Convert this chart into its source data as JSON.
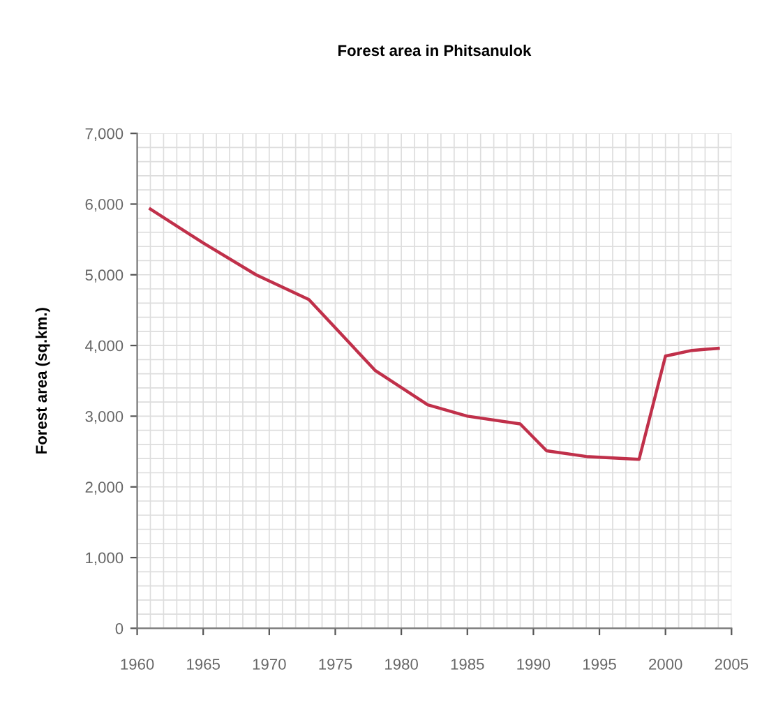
{
  "chart_data": {
    "type": "line",
    "title": "Forest area in Phitsanulok",
    "ylabel": "Forest area (sq.km.)",
    "x": [
      1961,
      1965,
      1969,
      1973,
      1978,
      1982,
      1985,
      1989,
      1991,
      1994,
      1998,
      2000,
      2002,
      2004
    ],
    "series": [
      {
        "color": "#c0304a",
        "values": [
          5930,
          5450,
          5000,
          4650,
          3650,
          3160,
          3000,
          2890,
          2510,
          2430,
          2390,
          3850,
          3930,
          3960
        ]
      }
    ],
    "xlim": [
      1960,
      2005
    ],
    "xticks": [
      1960,
      1965,
      1970,
      1975,
      1980,
      1985,
      1990,
      1995,
      2000,
      2005
    ],
    "ylim": [
      0,
      7000
    ],
    "yticks": [
      {
        "value": 0,
        "label": "0"
      },
      {
        "value": 1000,
        "label": "1,000"
      },
      {
        "value": 2000,
        "label": "2,000"
      },
      {
        "value": 3000,
        "label": "3,000"
      },
      {
        "value": 4000,
        "label": "4,000"
      },
      {
        "value": 5000,
        "label": "5,000"
      },
      {
        "value": 6000,
        "label": "6,000"
      },
      {
        "value": 7000,
        "label": "7,000"
      }
    ],
    "grid": true,
    "legend": false
  }
}
